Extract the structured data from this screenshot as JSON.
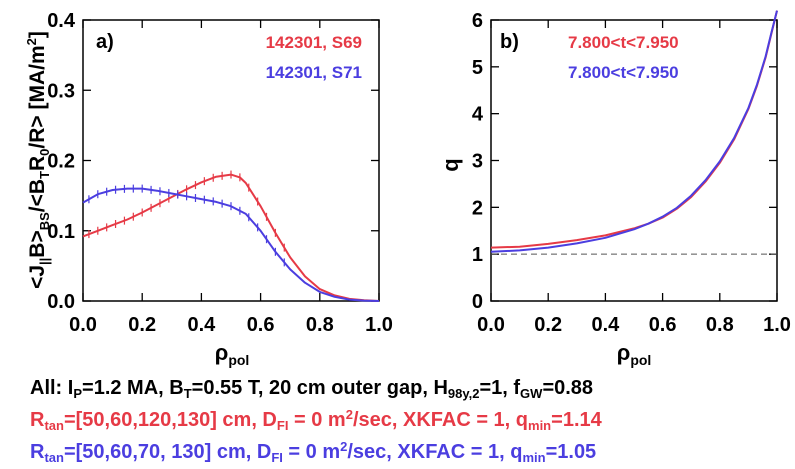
{
  "colors": {
    "red": "#e63a46",
    "blue": "#4b3ee0",
    "axis": "#000000",
    "dashed": "#555555"
  },
  "chart_data": [
    {
      "panel": "a",
      "type": "line",
      "panel_label": "a)",
      "ylabel": "<J||B>BS/<BTR0/R> [MA/m2]",
      "xlabel": "ρpol",
      "xlim": [
        0,
        1
      ],
      "ylim": [
        0,
        0.4
      ],
      "x_ticks": [
        "0.0",
        "0.2",
        "0.4",
        "0.6",
        "0.8",
        "1.0"
      ],
      "y_ticks": [
        "0.0",
        "0.1",
        "0.2",
        "0.3",
        "0.4"
      ],
      "error_bars": true,
      "series": [
        {
          "name": "142301, S69",
          "color": "red",
          "x": [
            0.0,
            0.05,
            0.1,
            0.15,
            0.2,
            0.25,
            0.3,
            0.35,
            0.4,
            0.45,
            0.5,
            0.53,
            0.55,
            0.6,
            0.65,
            0.7,
            0.75,
            0.8,
            0.85,
            0.9,
            0.95,
            1.0
          ],
          "y": [
            0.092,
            0.1,
            0.108,
            0.116,
            0.126,
            0.137,
            0.148,
            0.159,
            0.169,
            0.177,
            0.18,
            0.176,
            0.168,
            0.135,
            0.097,
            0.062,
            0.035,
            0.017,
            0.008,
            0.003,
            0.001,
            0.0
          ]
        },
        {
          "name": "142301, S71",
          "color": "blue",
          "x": [
            0.0,
            0.05,
            0.1,
            0.15,
            0.2,
            0.25,
            0.3,
            0.35,
            0.4,
            0.45,
            0.5,
            0.55,
            0.6,
            0.65,
            0.7,
            0.75,
            0.8,
            0.85,
            0.9,
            0.95,
            1.0
          ],
          "y": [
            0.14,
            0.152,
            0.158,
            0.16,
            0.16,
            0.157,
            0.153,
            0.149,
            0.145,
            0.141,
            0.135,
            0.124,
            0.1,
            0.07,
            0.045,
            0.026,
            0.013,
            0.006,
            0.002,
            0.0005,
            0.0
          ]
        }
      ]
    },
    {
      "panel": "b",
      "type": "line",
      "panel_label": "b)",
      "ylabel": "q",
      "xlabel": "ρpol",
      "xlim": [
        0,
        1
      ],
      "ylim": [
        0,
        6
      ],
      "x_ticks": [
        "0.0",
        "0.2",
        "0.4",
        "0.6",
        "0.8",
        "1.0"
      ],
      "y_ticks": [
        "0",
        "1",
        "2",
        "3",
        "4",
        "5",
        "6"
      ],
      "reference_line": {
        "y": 1,
        "style": "dashed"
      },
      "series": [
        {
          "name": "7.800<t<7.950",
          "color": "red",
          "x": [
            0.0,
            0.1,
            0.2,
            0.3,
            0.4,
            0.5,
            0.55,
            0.6,
            0.65,
            0.7,
            0.75,
            0.8,
            0.85,
            0.9,
            0.93,
            0.96,
            0.98,
            1.0
          ],
          "y": [
            1.14,
            1.16,
            1.22,
            1.3,
            1.4,
            1.55,
            1.65,
            1.78,
            1.97,
            2.22,
            2.55,
            2.95,
            3.45,
            4.1,
            4.6,
            5.2,
            5.7,
            6.2
          ]
        },
        {
          "name": "7.800<t<7.950",
          "color": "blue",
          "x": [
            0.0,
            0.1,
            0.2,
            0.3,
            0.4,
            0.5,
            0.55,
            0.6,
            0.65,
            0.7,
            0.75,
            0.8,
            0.85,
            0.9,
            0.93,
            0.96,
            0.98,
            1.0
          ],
          "y": [
            1.05,
            1.08,
            1.14,
            1.23,
            1.35,
            1.53,
            1.65,
            1.8,
            1.99,
            2.25,
            2.58,
            2.98,
            3.48,
            4.12,
            4.62,
            5.22,
            5.72,
            6.2
          ]
        }
      ]
    }
  ],
  "captions": {
    "line1": {
      "pre": "All: I",
      "sub1": "P",
      "mid1": "=1.2 MA, B",
      "sub2": "T",
      "mid2": "=0.55 T, 20 cm outer gap, H",
      "sub3": "98y,2",
      "mid3": "=1, f",
      "sub4": "GW",
      "end": "=0.88"
    },
    "line2": {
      "pre": "R",
      "sub1": "tan",
      "mid1": "=[50,60,120,130] cm, D",
      "sub2": "FI",
      "mid2": " = 0 m",
      "sup": "2",
      "mid3": "/sec, XKFAC = 1, q",
      "sub3": "min",
      "end": "=1.14"
    },
    "line3": {
      "pre": "R",
      "sub1": "tan",
      "mid1": "=[50,60,70, 130] cm, D",
      "sub2": "FI",
      "mid2": " = 0 m",
      "sup": "2",
      "mid3": "/sec, XKFAC = 1, q",
      "sub3": "min",
      "end": "=1.05"
    }
  }
}
